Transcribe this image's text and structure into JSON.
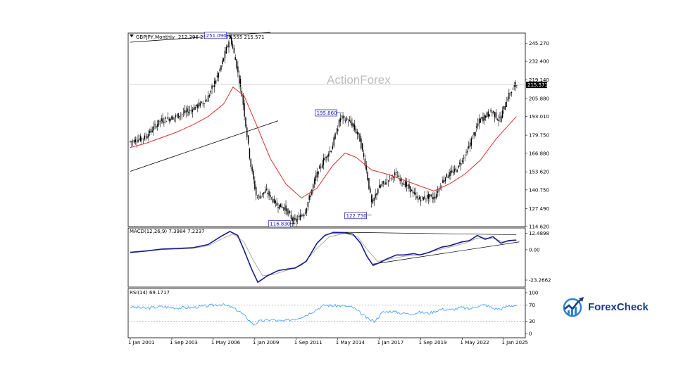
{
  "chart_data": [
    {
      "type": "candlestick",
      "title": "GBPJPY,Monthly",
      "ohlc_text": "212.296 215.882 209.555 215.571",
      "x_tick_labels": [
        "1 Jan 2001",
        "1 Sep 2003",
        "1 May 2006",
        "1 Jan 2009",
        "1 Sep 2011",
        "1 May 2014",
        "1 Jan 2017",
        "1 Sep 2019",
        "1 May 2022",
        "1 Jan 2025"
      ],
      "y_tick_labels": [
        "245.270",
        "232.400",
        "219.140",
        "205.880",
        "193.010",
        "179.750",
        "166.880",
        "153.620",
        "140.750",
        "127.490",
        "114.620"
      ],
      "ylim": [
        114.62,
        252.5
      ],
      "current_price_label": "215.571",
      "current_price": 215.571,
      "watermark": "ActionForex",
      "annotations": [
        {
          "text": "251.090",
          "year": 2007.5,
          "value": 251.09
        },
        {
          "text": "195.860",
          "year": 2014.6,
          "value": 195.86
        },
        {
          "text": "116.830",
          "year": 2011.6,
          "value": 116.83
        },
        {
          "text": "122.750",
          "year": 2016.5,
          "value": 122.75
        }
      ],
      "price_path": [
        [
          2001.0,
          175
        ],
        [
          2002.0,
          178
        ],
        [
          2003.0,
          190
        ],
        [
          2004.0,
          193
        ],
        [
          2005.0,
          198
        ],
        [
          2006.0,
          205
        ],
        [
          2006.8,
          225
        ],
        [
          2007.5,
          250
        ],
        [
          2007.9,
          230
        ],
        [
          2008.3,
          205
        ],
        [
          2008.8,
          160
        ],
        [
          2009.2,
          135
        ],
        [
          2009.8,
          140
        ],
        [
          2010.5,
          130
        ],
        [
          2011.0,
          128
        ],
        [
          2011.6,
          118
        ],
        [
          2012.3,
          125
        ],
        [
          2013.0,
          150
        ],
        [
          2013.5,
          162
        ],
        [
          2014.0,
          170
        ],
        [
          2014.6,
          193
        ],
        [
          2015.3,
          188
        ],
        [
          2015.8,
          178
        ],
        [
          2016.2,
          158
        ],
        [
          2016.6,
          130
        ],
        [
          2017.0,
          142
        ],
        [
          2017.5,
          147
        ],
        [
          2018.1,
          152
        ],
        [
          2018.6,
          146
        ],
        [
          2019.0,
          142
        ],
        [
          2019.6,
          134
        ],
        [
          2020.2,
          136
        ],
        [
          2020.6,
          135
        ],
        [
          2021.3,
          150
        ],
        [
          2022.0,
          155
        ],
        [
          2022.7,
          168
        ],
        [
          2023.5,
          190
        ],
        [
          2024.3,
          197
        ],
        [
          2024.8,
          190
        ],
        [
          2025.3,
          206
        ],
        [
          2025.8,
          215.571
        ]
      ],
      "ma_path": [
        [
          2001.0,
          171
        ],
        [
          2002.0,
          174
        ],
        [
          2003.0,
          178
        ],
        [
          2004.0,
          182
        ],
        [
          2005.0,
          187
        ],
        [
          2006.0,
          193
        ],
        [
          2007.0,
          202
        ],
        [
          2007.6,
          214
        ],
        [
          2008.3,
          208
        ],
        [
          2009.0,
          190
        ],
        [
          2010.0,
          163
        ],
        [
          2011.0,
          145
        ],
        [
          2012.0,
          135
        ],
        [
          2013.0,
          142
        ],
        [
          2014.0,
          158
        ],
        [
          2014.8,
          167
        ],
        [
          2015.5,
          164
        ],
        [
          2016.5,
          155
        ],
        [
          2017.5,
          152
        ],
        [
          2018.5,
          148
        ],
        [
          2019.5,
          144
        ],
        [
          2020.5,
          140
        ],
        [
          2021.5,
          145
        ],
        [
          2022.5,
          152
        ],
        [
          2023.5,
          162
        ],
        [
          2024.5,
          177
        ],
        [
          2025.8,
          193
        ]
      ],
      "trendlines": [
        {
          "from": [
            2001.0,
            246
          ],
          "to": [
            2010.0,
            253
          ]
        },
        {
          "from": [
            2001.0,
            154
          ],
          "to": [
            2010.5,
            190
          ]
        }
      ]
    },
    {
      "type": "line",
      "title": "MACD(12,26,9) 7.3984 7.2237",
      "y_tick_labels": [
        "12.4898",
        "0.00",
        "-23.2662"
      ],
      "ylim": [
        -26.5,
        14.5
      ],
      "macd": [
        [
          2001.0,
          -2
        ],
        [
          2002.0,
          -1
        ],
        [
          2003.0,
          0.5
        ],
        [
          2004.0,
          1
        ],
        [
          2005.0,
          1.5
        ],
        [
          2006.0,
          4
        ],
        [
          2006.8,
          10
        ],
        [
          2007.4,
          14
        ],
        [
          2007.9,
          11
        ],
        [
          2008.3,
          0
        ],
        [
          2008.8,
          -15
        ],
        [
          2009.2,
          -25
        ],
        [
          2009.8,
          -20
        ],
        [
          2010.5,
          -16
        ],
        [
          2011.0,
          -15
        ],
        [
          2011.6,
          -14
        ],
        [
          2012.3,
          -9
        ],
        [
          2013.0,
          5
        ],
        [
          2013.5,
          11
        ],
        [
          2014.0,
          13
        ],
        [
          2014.8,
          13
        ],
        [
          2015.3,
          12
        ],
        [
          2015.8,
          5
        ],
        [
          2016.2,
          -5
        ],
        [
          2016.6,
          -12
        ],
        [
          2017.0,
          -10
        ],
        [
          2017.5,
          -7
        ],
        [
          2018.1,
          -4
        ],
        [
          2018.6,
          -4
        ],
        [
          2019.2,
          -3
        ],
        [
          2019.6,
          -4
        ],
        [
          2020.2,
          -2
        ],
        [
          2021.0,
          2
        ],
        [
          2021.5,
          3
        ],
        [
          2022.3,
          6
        ],
        [
          2022.8,
          7
        ],
        [
          2023.3,
          11
        ],
        [
          2023.8,
          8
        ],
        [
          2024.3,
          10
        ],
        [
          2024.8,
          5
        ],
        [
          2025.3,
          7
        ],
        [
          2025.8,
          7.3984
        ]
      ],
      "signal": [
        [
          2001.0,
          -2.5
        ],
        [
          2003.0,
          0
        ],
        [
          2005.0,
          1
        ],
        [
          2006.0,
          3
        ],
        [
          2007.0,
          9
        ],
        [
          2007.6,
          12
        ],
        [
          2008.3,
          6
        ],
        [
          2008.9,
          -8
        ],
        [
          2009.5,
          -20
        ],
        [
          2010.2,
          -19
        ],
        [
          2011.0,
          -16
        ],
        [
          2012.0,
          -12
        ],
        [
          2013.0,
          1
        ],
        [
          2013.8,
          10
        ],
        [
          2014.8,
          12.5
        ],
        [
          2015.6,
          10
        ],
        [
          2016.3,
          -1
        ],
        [
          2016.9,
          -9
        ],
        [
          2017.7,
          -7
        ],
        [
          2018.6,
          -5
        ],
        [
          2019.6,
          -4
        ],
        [
          2020.5,
          -1
        ],
        [
          2021.5,
          2
        ],
        [
          2022.5,
          5
        ],
        [
          2023.3,
          9
        ],
        [
          2023.9,
          9
        ],
        [
          2024.5,
          8
        ],
        [
          2025.0,
          6
        ],
        [
          2025.8,
          7.2237
        ]
      ],
      "trendlines": [
        {
          "from": [
            2016.6,
            -11
          ],
          "to": [
            2026.0,
            6
          ]
        },
        {
          "from": [
            2014.0,
            13.5
          ],
          "to": [
            2025.8,
            11.5
          ]
        }
      ]
    },
    {
      "type": "line",
      "title": "RSI(14) 69.1717",
      "y_tick_labels": [
        "100",
        "70",
        "30",
        "0"
      ],
      "levels": [
        70,
        30
      ],
      "ylim": [
        0,
        100
      ],
      "rsi": [
        [
          2001.0,
          65
        ],
        [
          2002.0,
          62
        ],
        [
          2003.0,
          66
        ],
        [
          2004.0,
          63
        ],
        [
          2005.0,
          64
        ],
        [
          2006.0,
          68
        ],
        [
          2006.8,
          72
        ],
        [
          2007.4,
          66
        ],
        [
          2008.0,
          55
        ],
        [
          2008.5,
          38
        ],
        [
          2008.9,
          22
        ],
        [
          2009.3,
          30
        ],
        [
          2010.0,
          34
        ],
        [
          2010.8,
          30
        ],
        [
          2011.6,
          36
        ],
        [
          2012.3,
          45
        ],
        [
          2013.0,
          60
        ],
        [
          2013.5,
          70
        ],
        [
          2014.0,
          68
        ],
        [
          2014.7,
          68
        ],
        [
          2015.3,
          64
        ],
        [
          2015.8,
          50
        ],
        [
          2016.3,
          35
        ],
        [
          2016.7,
          30
        ],
        [
          2017.2,
          52
        ],
        [
          2017.8,
          55
        ],
        [
          2018.4,
          50
        ],
        [
          2019.0,
          48
        ],
        [
          2019.6,
          52
        ],
        [
          2020.2,
          50
        ],
        [
          2021.0,
          60
        ],
        [
          2021.6,
          58
        ],
        [
          2022.3,
          64
        ],
        [
          2022.8,
          60
        ],
        [
          2023.3,
          68
        ],
        [
          2023.8,
          70
        ],
        [
          2024.3,
          62
        ],
        [
          2024.8,
          60
        ],
        [
          2025.3,
          68
        ],
        [
          2025.8,
          69.17
        ]
      ]
    }
  ],
  "branding": {
    "logo_text": "ForexCheck",
    "logo_icon": "globe-chart-icon",
    "colors": {
      "price": "#000000",
      "ma": "#e03030",
      "macd": "#1a1a8c",
      "signal": "#9a9a9a",
      "rsi": "#4da3ff",
      "logo_text": "#1a3d7c",
      "logo_icon": "#2f7fd0"
    }
  }
}
